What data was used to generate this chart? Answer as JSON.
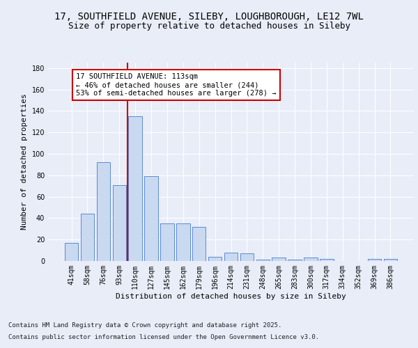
{
  "title_line1": "17, SOUTHFIELD AVENUE, SILEBY, LOUGHBOROUGH, LE12 7WL",
  "title_line2": "Size of property relative to detached houses in Sileby",
  "xlabel": "Distribution of detached houses by size in Sileby",
  "ylabel": "Number of detached properties",
  "categories": [
    "41sqm",
    "58sqm",
    "76sqm",
    "93sqm",
    "110sqm",
    "127sqm",
    "145sqm",
    "162sqm",
    "179sqm",
    "196sqm",
    "214sqm",
    "231sqm",
    "248sqm",
    "265sqm",
    "283sqm",
    "300sqm",
    "317sqm",
    "334sqm",
    "352sqm",
    "369sqm",
    "386sqm"
  ],
  "values": [
    17,
    44,
    92,
    71,
    135,
    79,
    35,
    35,
    32,
    4,
    8,
    7,
    1,
    3,
    1,
    3,
    2,
    0,
    0,
    2,
    2
  ],
  "bar_color": "#c9d9f0",
  "bar_edge_color": "#5b8bd0",
  "highlight_index": 4,
  "highlight_line_color": "#cc0000",
  "annotation_text": "17 SOUTHFIELD AVENUE: 113sqm\n← 46% of detached houses are smaller (244)\n53% of semi-detached houses are larger (278) →",
  "annotation_box_color": "#ffffff",
  "annotation_box_edge_color": "#cc0000",
  "ylim": [
    0,
    185
  ],
  "yticks": [
    0,
    20,
    40,
    60,
    80,
    100,
    120,
    140,
    160,
    180
  ],
  "background_color": "#e8edf8",
  "grid_color": "#ffffff",
  "footer_line1": "Contains HM Land Registry data © Crown copyright and database right 2025.",
  "footer_line2": "Contains public sector information licensed under the Open Government Licence v3.0.",
  "title_fontsize": 10,
  "subtitle_fontsize": 9,
  "axis_label_fontsize": 8,
  "tick_fontsize": 7,
  "annotation_fontsize": 7.5,
  "footer_fontsize": 6.5
}
